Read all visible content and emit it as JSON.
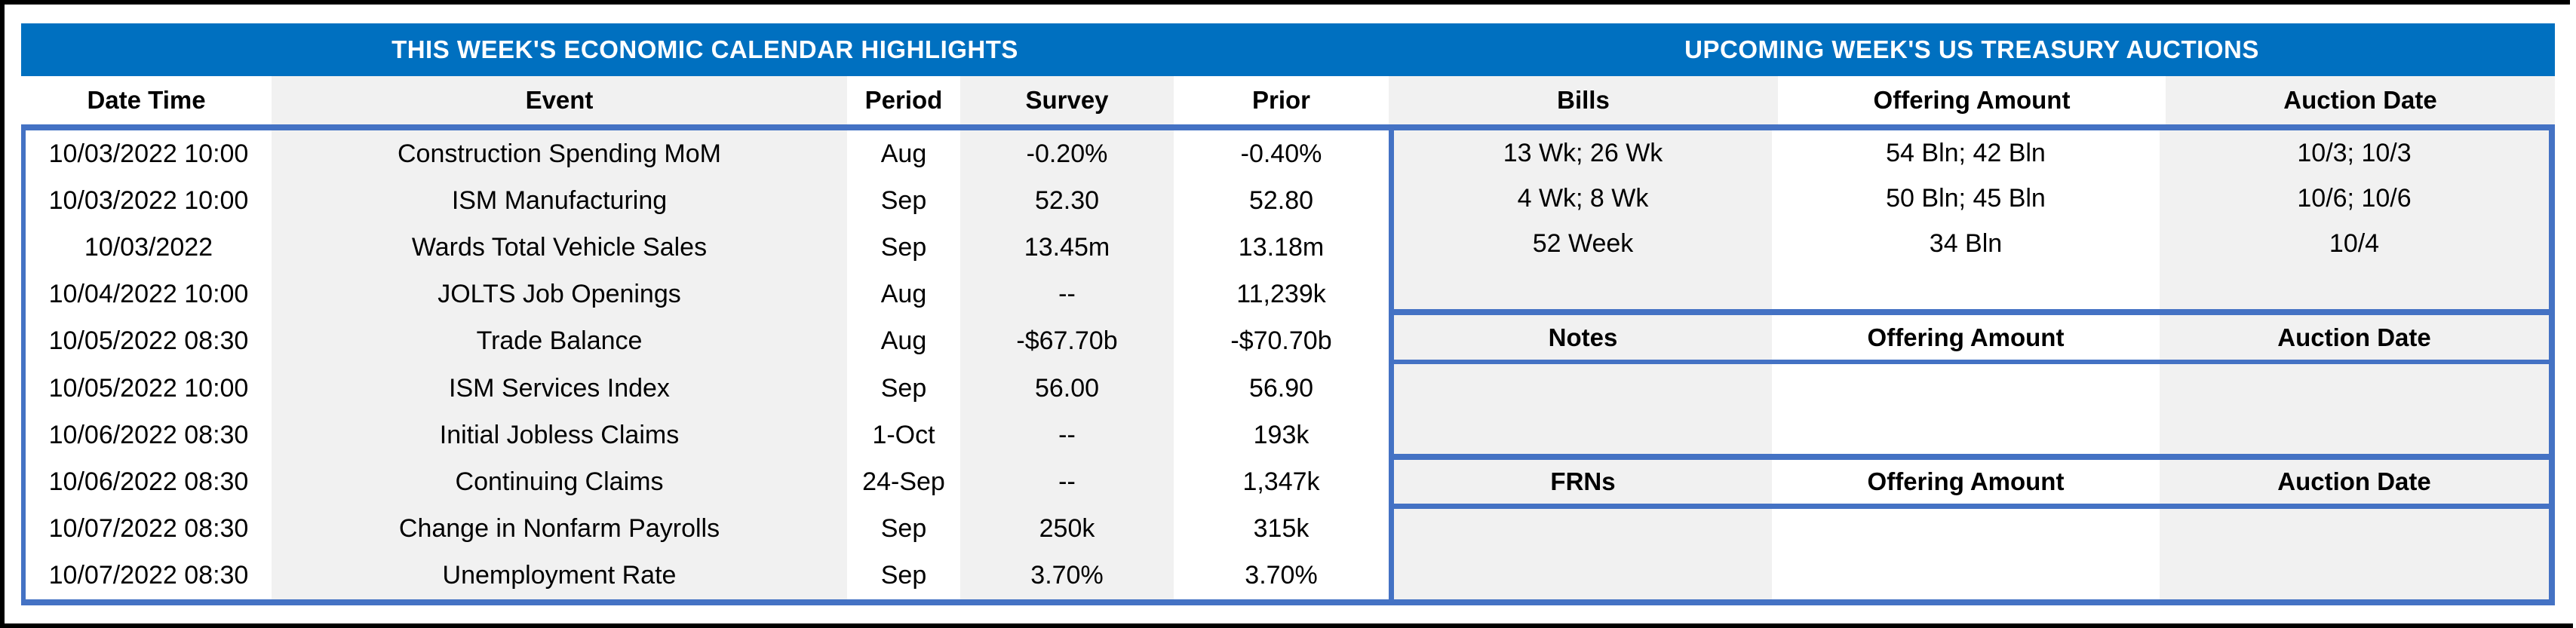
{
  "colors": {
    "title_bar_blue": "#0070C0",
    "table_border_blue": "#4472C4",
    "column_shade_gray": "#F1F1F1",
    "frame_black": "#000000"
  },
  "titles": {
    "left": "THIS WEEK'S ECONOMIC CALENDAR HIGHLIGHTS",
    "right": "UPCOMING WEEK'S US TREASURY AUCTIONS"
  },
  "calendar": {
    "columns": [
      "Date Time",
      "Event",
      "Period",
      "Survey",
      "Prior"
    ],
    "rows": [
      {
        "date_time": "10/03/2022 10:00",
        "event": "Construction Spending MoM",
        "period": "Aug",
        "survey": "-0.20%",
        "prior": "-0.40%"
      },
      {
        "date_time": "10/03/2022 10:00",
        "event": "ISM Manufacturing",
        "period": "Sep",
        "survey": "52.30",
        "prior": "52.80"
      },
      {
        "date_time": "10/03/2022",
        "event": "Wards Total Vehicle Sales",
        "period": "Sep",
        "survey": "13.45m",
        "prior": "13.18m"
      },
      {
        "date_time": "10/04/2022 10:00",
        "event": "JOLTS Job Openings",
        "period": "Aug",
        "survey": "--",
        "prior": "11,239k"
      },
      {
        "date_time": "10/05/2022 08:30",
        "event": "Trade Balance",
        "period": "Aug",
        "survey": "-$67.70b",
        "prior": "-$70.70b"
      },
      {
        "date_time": "10/05/2022 10:00",
        "event": "ISM Services Index",
        "period": "Sep",
        "survey": "56.00",
        "prior": "56.90"
      },
      {
        "date_time": "10/06/2022 08:30",
        "event": "Initial Jobless Claims",
        "period": "1-Oct",
        "survey": "--",
        "prior": "193k"
      },
      {
        "date_time": "10/06/2022 08:30",
        "event": "Continuing Claims",
        "period": "24-Sep",
        "survey": "--",
        "prior": "1,347k"
      },
      {
        "date_time": "10/07/2022 08:30",
        "event": "Change in Nonfarm Payrolls",
        "period": "Sep",
        "survey": "250k",
        "prior": "315k"
      },
      {
        "date_time": "10/07/2022 08:30",
        "event": "Unemployment Rate",
        "period": "Sep",
        "survey": "3.70%",
        "prior": "3.70%"
      }
    ]
  },
  "auctions": {
    "bills": {
      "header": [
        "Bills",
        "Offering Amount",
        "Auction Date"
      ],
      "rows": [
        {
          "security": "13 Wk; 26 Wk",
          "offering_amount": "54 Bln; 42 Bln",
          "auction_date": "10/3; 10/3"
        },
        {
          "security": "4 Wk; 8 Wk",
          "offering_amount": "50 Bln; 45 Bln",
          "auction_date": "10/6; 10/6"
        },
        {
          "security": "52 Week",
          "offering_amount": "34 Bln",
          "auction_date": "10/4"
        }
      ]
    },
    "notes": {
      "header": [
        "Notes",
        "Offering Amount",
        "Auction Date"
      ],
      "rows": []
    },
    "frns": {
      "header": [
        "FRNs",
        "Offering Amount",
        "Auction Date"
      ],
      "rows": []
    }
  }
}
